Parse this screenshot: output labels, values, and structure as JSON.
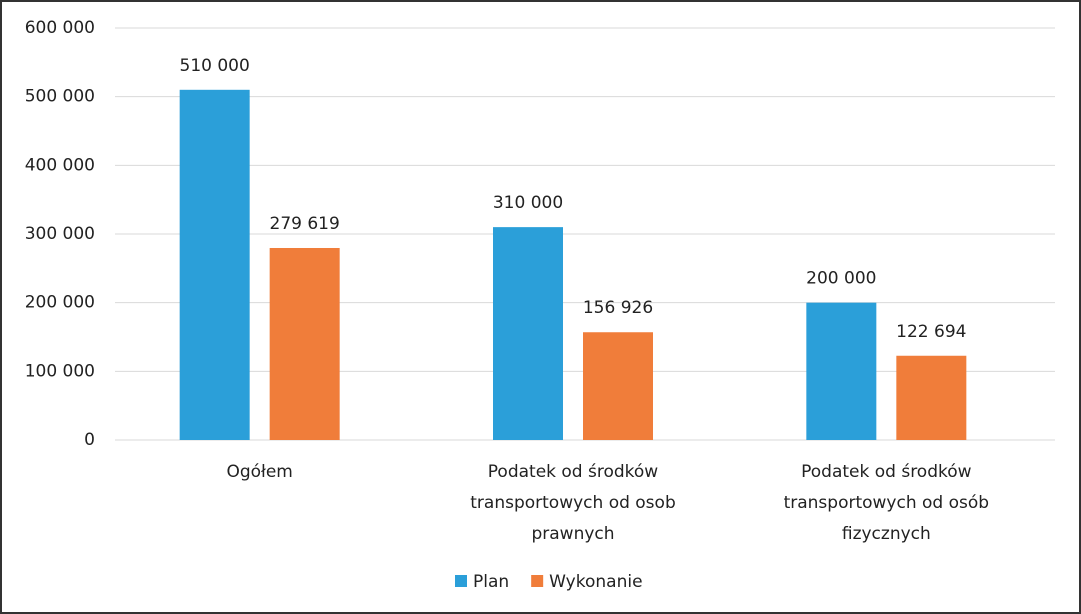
{
  "chart_data": {
    "type": "bar",
    "categories": [
      "Ogółem",
      "Podatek od środków transportowych od osob prawnych",
      "Podatek od środków transportowych od osób fizycznych"
    ],
    "series": [
      {
        "name": "Plan",
        "color": "#2b9fd9",
        "values": [
          510000,
          310000,
          200000
        ],
        "value_labels": [
          "510 000",
          "310 000",
          "200 000"
        ]
      },
      {
        "name": "Wykonanie",
        "color": "#f07d3a",
        "values": [
          279619,
          156926,
          122694
        ],
        "value_labels": [
          "279 619",
          "156 926",
          "122 694"
        ]
      }
    ],
    "ylim": [
      0,
      600000
    ],
    "yticks": [
      0,
      {
        "value": 100000,
        "label": "100 000"
      },
      {
        "value": 200000,
        "label": "200 000"
      },
      {
        "value": 300000,
        "label": "300 000"
      },
      {
        "value": 400000,
        "label": "400 000"
      },
      {
        "value": 500000,
        "label": "500 000"
      },
      {
        "value": 600000,
        "label": "600 000"
      }
    ],
    "grid": true,
    "legend": "bottom"
  }
}
